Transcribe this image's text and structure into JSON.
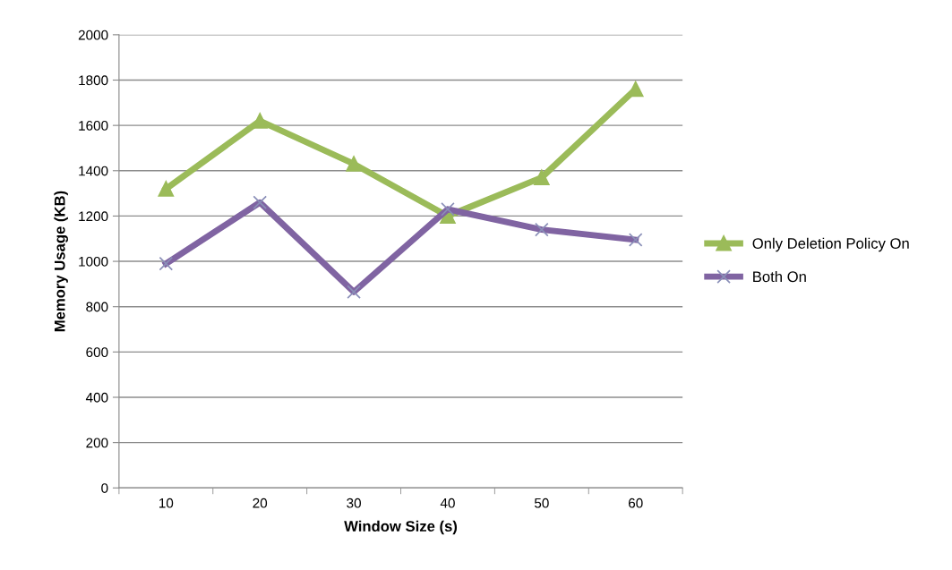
{
  "chart_data": {
    "type": "line",
    "xlabel": "Window Size (s)",
    "ylabel": "Memory Usage (KB)",
    "categories": [
      "10",
      "20",
      "30",
      "40",
      "50",
      "60"
    ],
    "series": [
      {
        "name": "Only Deletion Policy On",
        "color": "#9bbb59",
        "marker": "triangle",
        "values": [
          1320,
          1620,
          1430,
          1200,
          1370,
          1760
        ]
      },
      {
        "name": "Both On",
        "color": "#8064a2",
        "marker": "cross",
        "values": [
          990,
          1260,
          865,
          1230,
          1140,
          1095
        ]
      }
    ],
    "ylim": [
      0,
      2000
    ],
    "yticks": [
      0,
      200,
      400,
      600,
      800,
      1000,
      1200,
      1400,
      1600,
      1800,
      2000
    ],
    "grid": "y",
    "legend": "right",
    "line_style": "solid"
  }
}
